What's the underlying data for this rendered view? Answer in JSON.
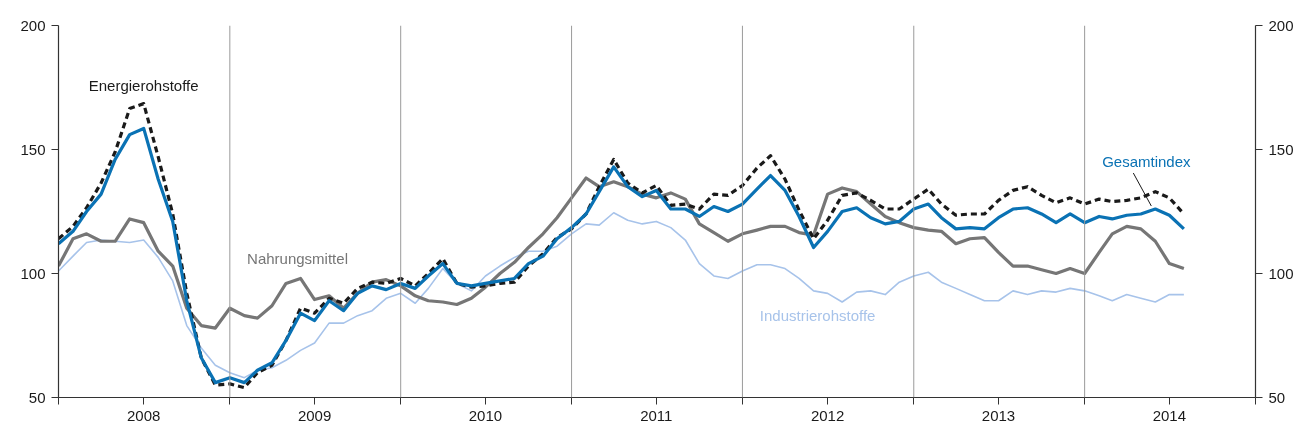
{
  "chart_data": {
    "type": "line",
    "x": [
      "2008-01",
      "2008-02",
      "2008-03",
      "2008-04",
      "2008-05",
      "2008-06",
      "2008-07",
      "2008-08",
      "2008-09",
      "2008-10",
      "2008-11",
      "2008-12",
      "2009-01",
      "2009-02",
      "2009-03",
      "2009-04",
      "2009-05",
      "2009-06",
      "2009-07",
      "2009-08",
      "2009-09",
      "2009-10",
      "2009-11",
      "2009-12",
      "2010-01",
      "2010-02",
      "2010-03",
      "2010-04",
      "2010-05",
      "2010-06",
      "2010-07",
      "2010-08",
      "2010-09",
      "2010-10",
      "2010-11",
      "2010-12",
      "2011-01",
      "2011-02",
      "2011-03",
      "2011-04",
      "2011-05",
      "2011-06",
      "2011-07",
      "2011-08",
      "2011-09",
      "2011-10",
      "2011-11",
      "2011-12",
      "2012-01",
      "2012-02",
      "2012-03",
      "2012-04",
      "2012-05",
      "2012-06",
      "2012-07",
      "2012-08",
      "2012-09",
      "2012-10",
      "2012-11",
      "2012-12",
      "2013-01",
      "2013-02",
      "2013-03",
      "2013-04",
      "2013-05",
      "2013-06",
      "2013-07",
      "2013-08",
      "2013-09",
      "2013-10",
      "2013-11",
      "2013-12",
      "2014-01",
      "2014-02",
      "2014-03",
      "2014-04",
      "2014-05",
      "2014-06",
      "2014-07",
      "2014-08"
    ],
    "series": [
      {
        "name": "Industrierohstoffe",
        "color": "#a7c3ea",
        "line_style": "solid",
        "values": [
          101,
          107,
          112.5,
          113.5,
          113,
          112.5,
          113.5,
          106.5,
          97,
          79,
          70,
          63,
          60,
          58,
          61,
          62,
          65,
          69,
          72,
          80,
          80,
          83,
          85,
          90,
          92,
          88,
          94,
          102,
          96,
          93,
          99,
          103,
          106.5,
          109,
          109,
          111,
          116,
          120,
          119.5,
          124.5,
          121.5,
          120,
          121,
          118.5,
          113.5,
          104,
          99,
          98,
          101,
          103.5,
          103.5,
          102,
          98,
          93,
          92,
          88.5,
          92.5,
          93,
          91.5,
          96.5,
          99,
          100.5,
          96.5,
          94,
          91.5,
          89,
          89,
          93,
          91.5,
          93,
          92.5,
          94,
          93,
          91,
          89,
          91.5,
          90,
          88.5,
          91.5,
          91.5
        ]
      },
      {
        "name": "Nahrungsmittel",
        "color": "#767676",
        "line_style": "solid",
        "values": [
          103,
          114,
          116,
          113,
          113,
          122,
          120.5,
          109,
          103,
          86,
          79,
          78,
          86,
          83,
          82,
          87,
          96,
          98,
          89.5,
          91,
          86,
          92,
          96.5,
          97.5,
          95,
          91,
          89,
          88.5,
          87.5,
          90,
          94.5,
          100,
          104.5,
          110.5,
          116,
          122.5,
          130.5,
          138.5,
          135,
          137,
          135,
          132,
          130.5,
          132.5,
          130,
          120,
          116.5,
          113,
          116,
          117.5,
          119,
          119,
          116.5,
          115.5,
          132,
          134.5,
          133,
          128,
          123,
          120.5,
          118.5,
          117.5,
          117,
          112,
          114,
          114.5,
          108.5,
          103,
          103,
          101.5,
          100,
          102,
          100,
          108.5,
          116,
          119,
          118,
          113,
          104,
          102
        ]
      },
      {
        "name": "Energierohstoffe",
        "color": "#1a1a1a",
        "line_style": "dashed",
        "values": [
          114,
          119,
          126.5,
          136.5,
          149,
          166.5,
          168.5,
          147,
          124,
          92,
          66,
          55,
          55.5,
          54,
          60,
          63,
          73,
          86,
          84,
          90,
          88,
          94,
          96.5,
          96,
          98,
          95,
          100,
          106,
          96,
          94.5,
          95,
          96,
          96.5,
          103,
          108,
          114.5,
          118,
          124,
          135,
          146,
          136.5,
          132.5,
          135.5,
          127.5,
          128,
          126,
          132,
          131.5,
          135.5,
          142.5,
          147.5,
          138,
          125.5,
          114,
          121.5,
          131.5,
          132.5,
          129.5,
          126,
          126,
          130,
          134,
          128,
          123.5,
          124,
          124,
          129.5,
          133.5,
          135,
          131.5,
          128.5,
          130.5,
          128,
          130,
          129,
          129.5,
          130.5,
          133,
          130.5,
          124
        ]
      },
      {
        "name": "Gesamtindex",
        "color": "#0a72b4",
        "line_style": "solid",
        "values": [
          112,
          117,
          125,
          132,
          146,
          156,
          158.5,
          138,
          121,
          89,
          66,
          56,
          58,
          56,
          61,
          64,
          73,
          84,
          81,
          89,
          85,
          92,
          95,
          93.5,
          96,
          94,
          99,
          104,
          96,
          95,
          96,
          97,
          98,
          104,
          107,
          114,
          118.5,
          124,
          133,
          143,
          135,
          131,
          133.5,
          126,
          126,
          123,
          127,
          125,
          128,
          134,
          139.5,
          133.5,
          123,
          110.5,
          117,
          125,
          126.5,
          122.5,
          120,
          121,
          126,
          128,
          122.5,
          118,
          118.5,
          118,
          122.5,
          126,
          126.5,
          124,
          120.5,
          124,
          120.5,
          123,
          122,
          123.5,
          124,
          126,
          123.5,
          118
        ]
      }
    ],
    "xlim": [
      "2008-01",
      "2015-01"
    ],
    "xticks": [
      {
        "value": "2008-01",
        "label": null
      },
      {
        "value": "2008-07",
        "label": "2008"
      },
      {
        "value": "2009-01",
        "label": null
      },
      {
        "value": "2009-07",
        "label": "2009"
      },
      {
        "value": "2010-01",
        "label": null
      },
      {
        "value": "2010-07",
        "label": "2010"
      },
      {
        "value": "2011-01",
        "label": null
      },
      {
        "value": "2011-07",
        "label": "2011"
      },
      {
        "value": "2012-01",
        "label": null
      },
      {
        "value": "2012-07",
        "label": "2012"
      },
      {
        "value": "2013-01",
        "label": null
      },
      {
        "value": "2013-07",
        "label": "2013"
      },
      {
        "value": "2014-01",
        "label": null
      },
      {
        "value": "2014-07",
        "label": "2014"
      },
      {
        "value": "2015-01",
        "label": null
      }
    ],
    "ylim": [
      50,
      200
    ],
    "yticks": [
      50,
      100,
      150,
      200
    ],
    "y2lim": [
      50,
      200
    ],
    "y2ticks": [
      50,
      100,
      150,
      200
    ],
    "ref_lines": [
      {
        "axis": "x",
        "value": "2009-01",
        "color": "#9a9a9a"
      },
      {
        "axis": "x",
        "value": "2010-01",
        "color": "#9a9a9a"
      },
      {
        "axis": "x",
        "value": "2011-01",
        "color": "#9a9a9a"
      },
      {
        "axis": "x",
        "value": "2012-01",
        "color": "#9a9a9a"
      },
      {
        "axis": "x",
        "value": "2013-01",
        "color": "#9a9a9a"
      },
      {
        "axis": "x",
        "value": "2014-01",
        "color": "#9a9a9a"
      }
    ]
  }
}
